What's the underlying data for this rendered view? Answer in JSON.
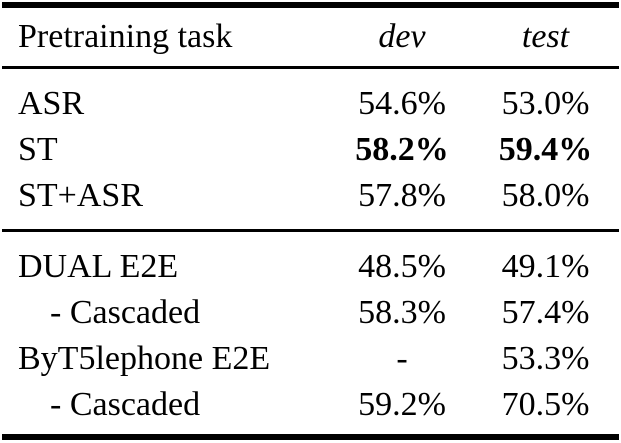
{
  "table": {
    "header": {
      "task": "Pretraining task",
      "dev": "dev",
      "test": "test"
    },
    "groups": [
      {
        "rows": [
          {
            "task": "ASR",
            "dev": "54.6%",
            "test": "53.0%"
          },
          {
            "task": "ST",
            "dev": "58.2%",
            "test": "59.4%"
          },
          {
            "task": "ST+ASR",
            "dev": "57.8%",
            "test": "58.0%"
          }
        ]
      },
      {
        "rows": [
          {
            "task": "DUAL E2E",
            "dev": "48.5%",
            "test": "49.1%"
          },
          {
            "task": "- Cascaded",
            "dev": "58.3%",
            "test": "57.4%"
          },
          {
            "task": "ByT5lephone E2E",
            "dev": "-",
            "test": "53.3%"
          },
          {
            "task": "- Cascaded",
            "dev": "59.2%",
            "test": "70.5%"
          }
        ]
      }
    ],
    "colors": {
      "text": "#000000",
      "background": "#ffffff",
      "rule": "#000000"
    }
  }
}
